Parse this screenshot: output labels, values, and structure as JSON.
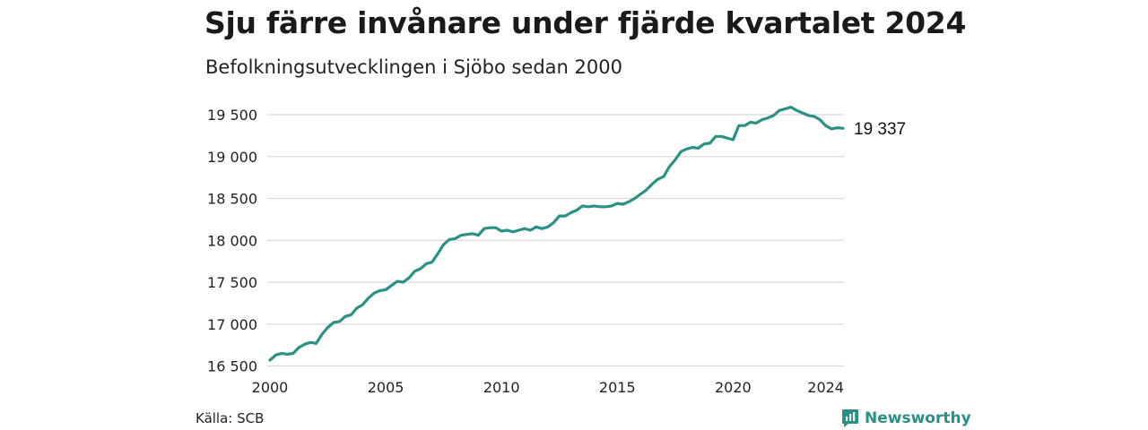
{
  "title": "Sju färre invånare under fjärde kvartalet 2024",
  "subtitle": "Befolkningsutvecklingen i Sjöbo sedan 2000",
  "source": "Källa: SCB",
  "brand": {
    "name": "Newsworthy",
    "icon": "newsworthy-logo-icon"
  },
  "colors": {
    "line": "#2a9184",
    "grid": "#d9d9d9",
    "brand": "#2a8f84"
  },
  "chart_data": {
    "type": "line",
    "x_start": 2000.0,
    "x_step": 0.25,
    "xlim": [
      2000.0,
      2024.75
    ],
    "ylim": [
      16500,
      19600
    ],
    "grid": "horizontal",
    "x_ticks": [
      {
        "value": 2000,
        "label": "2000"
      },
      {
        "value": 2005,
        "label": "2005"
      },
      {
        "value": 2010,
        "label": "2010"
      },
      {
        "value": 2015,
        "label": "2015"
      },
      {
        "value": 2020,
        "label": "2020"
      },
      {
        "value": 2024,
        "label": "2024"
      }
    ],
    "y_ticks": [
      {
        "value": 16500,
        "label": "16 500"
      },
      {
        "value": 17000,
        "label": "17 000"
      },
      {
        "value": 17500,
        "label": "17 500"
      },
      {
        "value": 18000,
        "label": "18 000"
      },
      {
        "value": 18500,
        "label": "18 500"
      },
      {
        "value": 19000,
        "label": "19 000"
      },
      {
        "value": 19500,
        "label": "19 500"
      }
    ],
    "end_label": "19 337",
    "values": [
      16570,
      16630,
      16650,
      16640,
      16650,
      16720,
      16760,
      16780,
      16770,
      16880,
      16960,
      17020,
      17030,
      17090,
      17110,
      17190,
      17230,
      17310,
      17370,
      17400,
      17410,
      17460,
      17510,
      17500,
      17550,
      17630,
      17660,
      17720,
      17740,
      17840,
      17950,
      18010,
      18020,
      18060,
      18070,
      18080,
      18060,
      18140,
      18150,
      18150,
      18110,
      18120,
      18100,
      18120,
      18140,
      18120,
      18160,
      18140,
      18160,
      18210,
      18290,
      18290,
      18330,
      18360,
      18410,
      18400,
      18410,
      18400,
      18400,
      18410,
      18440,
      18430,
      18460,
      18500,
      18550,
      18600,
      18670,
      18730,
      18760,
      18880,
      18960,
      19060,
      19090,
      19110,
      19100,
      19150,
      19160,
      19240,
      19240,
      19220,
      19200,
      19370,
      19370,
      19410,
      19400,
      19440,
      19460,
      19490,
      19550,
      19570,
      19590,
      19550,
      19520,
      19490,
      19480,
      19440,
      19370,
      19330,
      19344,
      19337
    ]
  }
}
